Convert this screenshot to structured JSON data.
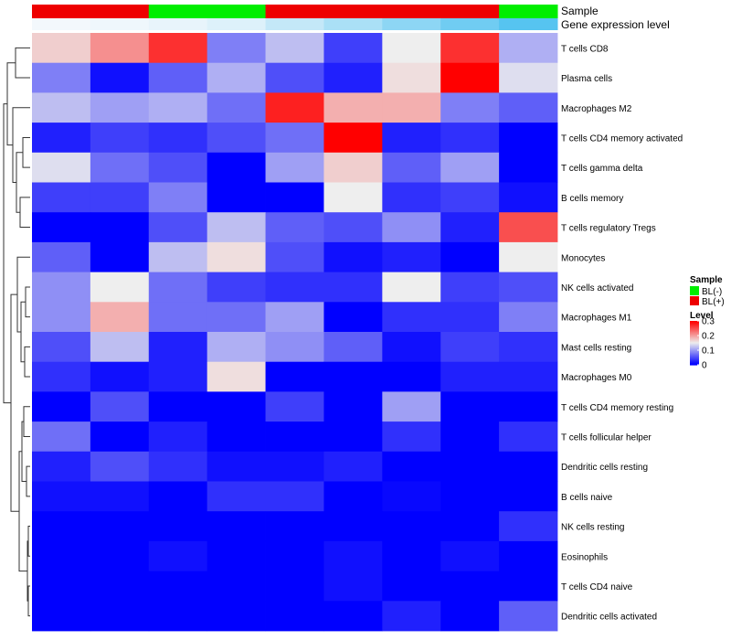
{
  "chart_data": {
    "type": "heatmap",
    "annotation_tracks": [
      {
        "name": "Sample",
        "values": [
          "BL(+)",
          "BL(+)",
          "BL(-)",
          "BL(-)",
          "BL(+)",
          "BL(+)",
          "BL(+)",
          "BL(+)",
          "BL(-)"
        ]
      },
      {
        "name": "Gene expression level",
        "values": [
          0.02,
          0.03,
          0.05,
          0.08,
          0.15,
          0.22,
          0.3,
          0.38,
          0.45
        ]
      }
    ],
    "rows": [
      "T cells CD8",
      "Plasma cells",
      "Macrophages M2",
      "T cells CD4 memory activated",
      "T cells gamma delta",
      "B cells memory",
      "T cells regulatory  Tregs",
      "Monocytes",
      "NK cells activated",
      "Macrophages M1",
      "Mast cells resting",
      "Macrophages M0",
      "T cells CD4 memory resting",
      "T cells follicular helper",
      "Dendritic cells resting",
      "B cells naive",
      "NK cells resting",
      "Eosinophils",
      "T cells CD4 naive",
      "Dendritic cells activated"
    ],
    "values": [
      [
        0.17,
        0.21,
        0.27,
        0.08,
        0.12,
        0.04,
        0.15,
        0.27,
        0.11
      ],
      [
        0.08,
        0.01,
        0.06,
        0.11,
        0.05,
        0.02,
        0.16,
        0.3,
        0.14
      ],
      [
        0.12,
        0.1,
        0.11,
        0.07,
        0.28,
        0.19,
        0.19,
        0.08,
        0.06
      ],
      [
        0.02,
        0.04,
        0.03,
        0.05,
        0.07,
        0.3,
        0.02,
        0.03,
        0.0
      ],
      [
        0.14,
        0.07,
        0.05,
        0.0,
        0.1,
        0.17,
        0.06,
        0.1,
        0.0
      ],
      [
        0.04,
        0.04,
        0.08,
        0.0,
        0.0,
        0.15,
        0.03,
        0.04,
        0.01
      ],
      [
        0.0,
        0.0,
        0.05,
        0.12,
        0.06,
        0.05,
        0.09,
        0.02,
        0.25
      ],
      [
        0.06,
        0.0,
        0.12,
        0.16,
        0.05,
        0.01,
        0.02,
        0.0,
        0.15
      ],
      [
        0.09,
        0.15,
        0.07,
        0.04,
        0.03,
        0.03,
        0.15,
        0.04,
        0.05
      ],
      [
        0.09,
        0.19,
        0.07,
        0.07,
        0.1,
        0.0,
        0.03,
        0.03,
        0.08
      ],
      [
        0.05,
        0.12,
        0.02,
        0.11,
        0.09,
        0.06,
        0.01,
        0.04,
        0.03
      ],
      [
        0.03,
        0.01,
        0.02,
        0.16,
        0.0,
        0.0,
        0.0,
        0.02,
        0.02
      ],
      [
        0.0,
        0.05,
        0.0,
        0.0,
        0.04,
        0.0,
        0.1,
        0.0,
        0.0
      ],
      [
        0.07,
        0.0,
        0.02,
        0.0,
        0.0,
        0.0,
        0.03,
        0.0,
        0.03
      ],
      [
        0.02,
        0.05,
        0.03,
        0.01,
        0.01,
        0.02,
        0.0,
        0.0,
        0.0
      ],
      [
        0.01,
        0.01,
        0.0,
        0.03,
        0.03,
        0.0,
        0.005,
        0.0,
        0.0
      ],
      [
        0.0,
        0.0,
        0.0,
        0.0,
        0.0,
        0.0,
        0.0,
        0.0,
        0.03
      ],
      [
        0.0,
        0.0,
        0.01,
        0.0,
        0.0,
        0.01,
        0.0,
        0.01,
        0.0
      ],
      [
        0.0,
        0.0,
        0.0,
        0.0,
        0.0,
        0.01,
        0.0,
        0.0,
        0.0
      ],
      [
        0.0,
        0.0,
        0.0,
        0.0,
        0.0,
        0.0,
        0.02,
        0.0,
        0.06
      ]
    ],
    "color_scale": {
      "low": "#0000ff",
      "mid": "#eeeeee",
      "high": "#ff0000",
      "range": [
        0,
        0.3
      ],
      "mid_value": 0.15
    },
    "legend_sample": {
      "title": "Sample",
      "entries": [
        {
          "label": "BL(-)",
          "color": "#00ee00"
        },
        {
          "label": "BL(+)",
          "color": "#ee0000"
        }
      ]
    },
    "legend_level": {
      "title": "Level",
      "ticks": [
        {
          "value": 0.3,
          "label": "0.3"
        },
        {
          "value": 0.2,
          "label": "0.2"
        },
        {
          "value": 0.1,
          "label": "0.1"
        },
        {
          "value": 0,
          "label": "0"
        }
      ]
    },
    "expression_track_colors": {
      "low": "#f3f8fc",
      "high": "#56c4f0"
    },
    "dendrogram": "row clustering tree",
    "legend_placement": "right"
  }
}
